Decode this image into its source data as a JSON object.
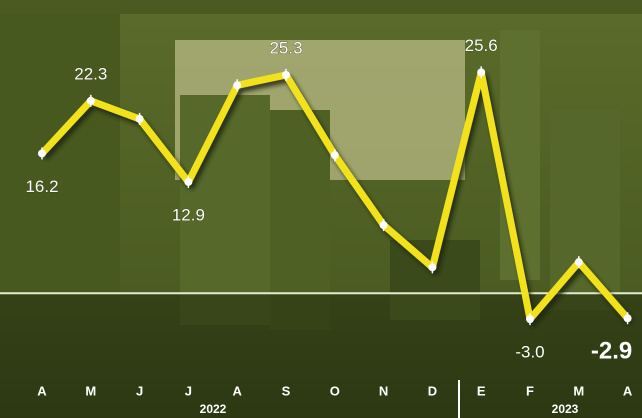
{
  "chart_data": {
    "type": "line",
    "categories": [
      "A",
      "M",
      "J",
      "J",
      "A",
      "S",
      "O",
      "N",
      "D",
      "E",
      "F",
      "M",
      "A"
    ],
    "years": [
      "2022",
      "2023"
    ],
    "series": [
      {
        "name": null,
        "color": "#f2e21c",
        "values": [
          16.2,
          22.3,
          20.2,
          12.9,
          24.1,
          25.3,
          16.0,
          7.9,
          3.0,
          25.6,
          -3.0,
          3.6,
          -2.9
        ],
        "value_labels": [
          "16.2",
          "22.3",
          null,
          "12.9",
          null,
          "25.3",
          null,
          null,
          null,
          "25.6",
          "-3.0",
          null,
          "-2.9"
        ]
      }
    ],
    "ylim": [
      -6,
      29
    ],
    "zero_line": true
  }
}
